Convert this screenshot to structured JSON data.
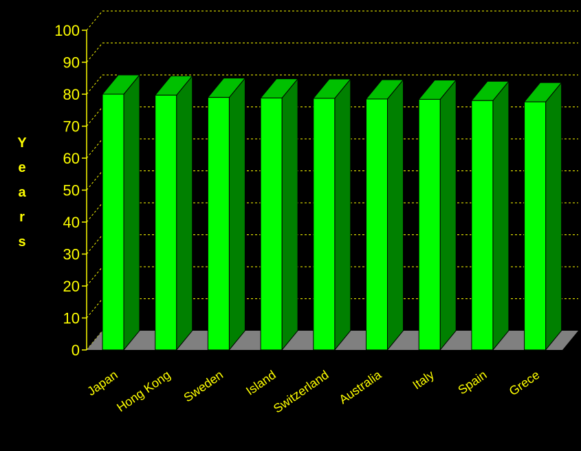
{
  "chart_data": {
    "type": "bar",
    "categories": [
      "Japan",
      "Hong Kong",
      "Sweden",
      "Island",
      "Switzerland",
      "Australia",
      "Italy",
      "Spain",
      "Grece"
    ],
    "values": [
      80,
      79.7,
      79,
      78.8,
      78.7,
      78.5,
      78.4,
      78,
      77.6
    ],
    "xlabel": "",
    "ylabel": "Years",
    "ylim": [
      0,
      100
    ],
    "yticks": [
      0,
      10,
      20,
      30,
      40,
      50,
      60,
      70,
      80,
      90,
      100
    ],
    "grid": true,
    "legend": "none",
    "style": "3d"
  },
  "colors": {
    "background": "#000000",
    "text": "#ffff00",
    "bar_front": "#00ff00",
    "bar_side": "#008000",
    "bar_top": "#00c000",
    "floor": "#808080",
    "grid": "#ffff00"
  }
}
